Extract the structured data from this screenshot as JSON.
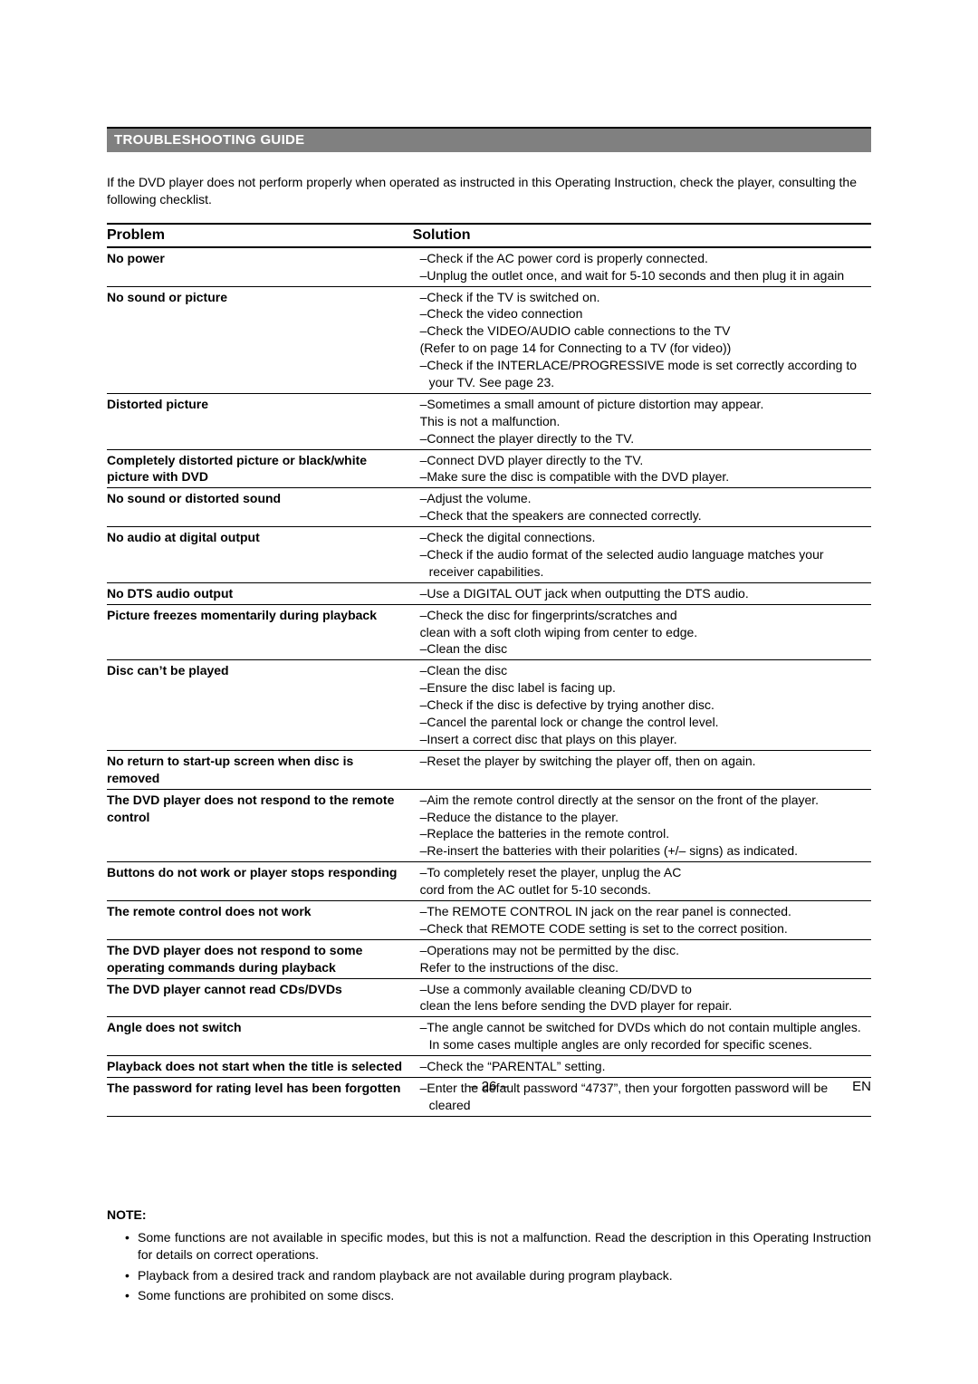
{
  "sectionTitle": "TROUBLESHOOTING GUIDE",
  "intro": "If the DVD player does not perform properly when operated as instructed in this Operating Instruction, check the player, consulting the following checklist.",
  "headers": {
    "problem": "Problem",
    "solution": "Solution"
  },
  "rows": [
    {
      "problem": "No power",
      "solution": [
        "–Check if the AC power cord is properly connected.",
        "–Unplug the outlet once, and wait for 5-10 seconds and then plug it in again"
      ]
    },
    {
      "problem": "No sound or picture",
      "solution": [
        "–Check if the TV is switched on.",
        "–Check the video connection",
        "–Check the VIDEO/AUDIO cable connections to the TV",
        "(Refer to on page 14  for Connecting to a TV (for video))",
        "–Check if the INTERLACE/PROGRESSIVE mode is set correctly according to your TV. See page 23."
      ]
    },
    {
      "problem": "Distorted picture",
      "solution": [
        "–Sometimes a small amount of picture distortion may appear.",
        "This is not a malfunction.",
        "–Connect the player directly to the TV."
      ]
    },
    {
      "problem": "Completely distorted picture or black/white picture with DVD",
      "solution": [
        "–Connect DVD player directly to the TV.",
        "–Make sure the disc is compatible with the DVD player."
      ]
    },
    {
      "problem": "No sound or distorted sound",
      "solution": [
        "–Adjust the volume.",
        "–Check that the speakers are connected correctly."
      ]
    },
    {
      "problem": "No audio at digital output",
      "solution": [
        "–Check the digital connections.",
        "–Check if the audio format of the selected audio language matches your receiver capabilities."
      ]
    },
    {
      "problem": "No DTS audio output",
      "solution": [
        "–Use a DIGITAL OUT jack when outputting the DTS audio."
      ]
    },
    {
      "problem": "Picture freezes momentarily during playback",
      "solution": [
        "–Check the disc for fingerprints/scratches and",
        "clean with a soft cloth wiping from center to edge.",
        "–Clean the disc"
      ]
    },
    {
      "problem": "Disc can’t be played",
      "solution": [
        "–Clean the disc",
        "–Ensure the disc label is facing up.",
        "–Check if the disc is defective by trying another disc.",
        "–Cancel the parental lock or change the control level.",
        "–Insert a correct disc that plays on this player."
      ]
    },
    {
      "problem": "No return to start-up screen when disc is removed",
      "solution": [
        "–Reset the player by switching the player off, then on again."
      ]
    },
    {
      "problem": "The DVD player does not respond to the remote control",
      "solution": [
        "–Aim the remote control directly at the sensor on the front of the player.",
        "–Reduce the distance to the player.",
        "–Replace the batteries in the remote control.",
        "–Re-insert the batteries with their polarities (+/– signs) as indicated."
      ]
    },
    {
      "problem": "Buttons do not work or player stops responding",
      "solution": [
        "–To completely reset the player, unplug the AC",
        "cord from the AC outlet for 5-10 seconds."
      ]
    },
    {
      "problem": "The remote control does not work",
      "solution": [
        "–The REMOTE CONTROL IN jack on the rear panel is connected.",
        "–Check that REMOTE CODE setting is set to the correct position."
      ]
    },
    {
      "problem": "The DVD player does not respond to some operating commands during playback",
      "solution": [
        "–Operations may not be permitted by the disc.",
        "Refer to the instructions of  the disc."
      ]
    },
    {
      "problem": "The DVD player cannot read CDs/DVDs",
      "solution": [
        "–Use a commonly available cleaning CD/DVD to",
        "clean the lens before sending the DVD player for repair."
      ]
    },
    {
      "problem": "Angle does not switch",
      "solution": [
        "–The angle cannot be switched for DVDs which do not contain multiple angles. In some cases multiple angles are only recorded for specific scenes."
      ]
    },
    {
      "problem": "Playback does not start when the title is selected",
      "solution": [
        "–Check the “PARENTAL” setting."
      ]
    },
    {
      "problem": "The password for rating level has been forgotten",
      "solution": [
        "–Enter the default password “4737”, then your forgotten password will be cleared"
      ]
    }
  ],
  "noteHeading": "NOTE:",
  "notes": [
    "Some functions are not available in specific modes, but this is not a malfunction. Read the description in this Operating Instruction for details on correct operations.",
    "Playback from a desired track and random playback are not available during program playback.",
    "Some functions are prohibited on some discs."
  ],
  "pageNumber": "– 26 –",
  "lang": "EN"
}
